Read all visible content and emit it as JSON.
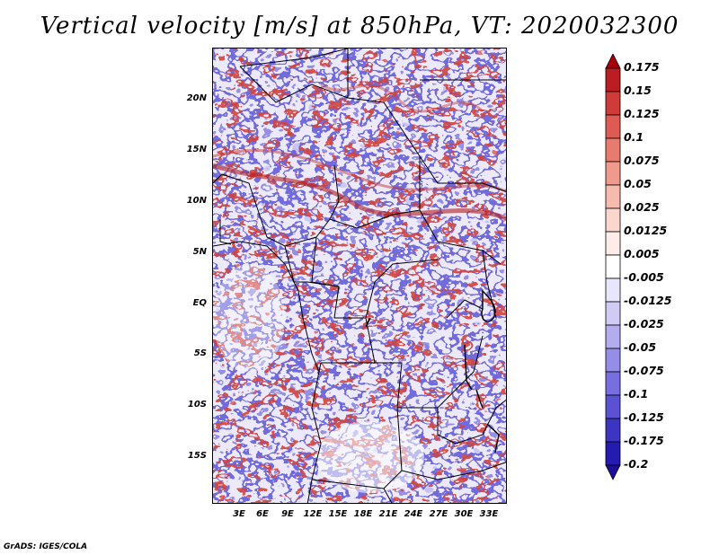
{
  "title": "Vertical velocity [m/s] at 850hPa, VT: 2020032300",
  "variable": "Vertical velocity",
  "units": "m/s",
  "level": "850hPa",
  "valid_time": "2020032300",
  "map": {
    "lon_range": [
      0,
      35
    ],
    "lat_range": [
      -20,
      25
    ],
    "lat_ticks": [
      "20N",
      "15N",
      "10N",
      "5N",
      "EQ",
      "5S",
      "10S",
      "15S"
    ],
    "lon_ticks": [
      "3E",
      "6E",
      "9E",
      "12E",
      "15E",
      "18E",
      "21E",
      "24E",
      "27E",
      "30E",
      "33E"
    ]
  },
  "colorbar": {
    "labels": [
      "0.175",
      "0.15",
      "0.125",
      "0.1",
      "0.075",
      "0.05",
      "0.025",
      "0.0125",
      "0.005",
      "-0.005",
      "-0.0125",
      "-0.025",
      "-0.05",
      "-0.075",
      "-0.1",
      "-0.125",
      "-0.175",
      "-0.2"
    ],
    "colors": [
      "#a5000d",
      "#bb1d22",
      "#cf3b38",
      "#dd5b52",
      "#e77b6e",
      "#ef9a8c",
      "#f6baae",
      "#fbd6cd",
      "#fdece8",
      "#ffffff",
      "#e8e6fb",
      "#cfcbf5",
      "#b3adf0",
      "#958ee9",
      "#776fe0",
      "#5a52d3",
      "#3c35c2",
      "#231cae",
      "#1d0f9a"
    ]
  },
  "credit": "GrADS: IGES/COLA"
}
